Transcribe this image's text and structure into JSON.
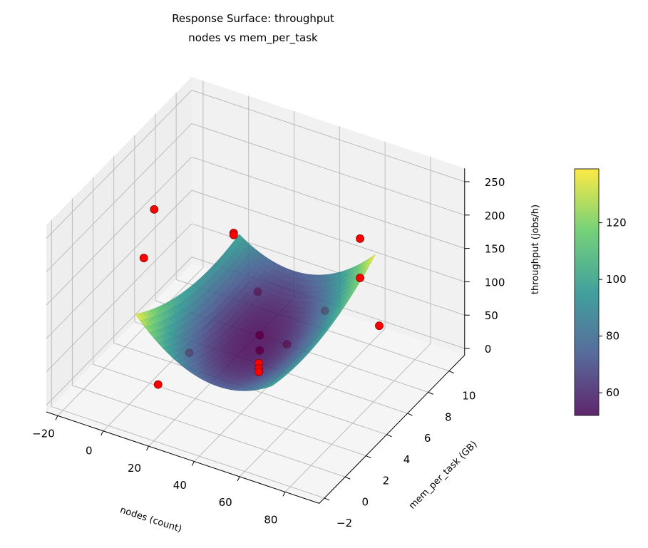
{
  "chart_data": {
    "type": "surface3d+scatter3d",
    "title": "Response Surface: throughput",
    "subtitle": "nodes vs mem_per_task",
    "xlabel": "nodes (count)",
    "ylabel": "mem_per_task (GB)",
    "zlabel": "throughput (jobs/h)",
    "xlim": [
      -25,
      95
    ],
    "ylim": [
      -2.5,
      11.5
    ],
    "zlim": [
      -10,
      270
    ],
    "xticks": [
      -20,
      0,
      20,
      40,
      60,
      80
    ],
    "yticks": [
      -2,
      0,
      2,
      4,
      6,
      8,
      10
    ],
    "zticks": [
      0,
      50,
      100,
      150,
      200,
      250
    ],
    "grid": true,
    "colormap": "viridis",
    "surface": {
      "x_range": [
        5,
        65
      ],
      "y_range": [
        -0.5,
        9.5
      ],
      "model": {
        "intercept": 52,
        "x_center": 35,
        "y_center": 4.5,
        "a_xx": 0.05,
        "b_yy": 0.9,
        "c_xy": 0.13
      },
      "alpha": 0.85
    },
    "colorbar": {
      "min": 52,
      "max": 139,
      "ticks": [
        60,
        80,
        100,
        120
      ]
    },
    "points": {
      "color": "#ff0000",
      "edge_color": "#8b0000",
      "data": [
        [
          30,
          6,
          33
        ],
        [
          30,
          6,
          10
        ],
        [
          57,
          0,
          117
        ],
        [
          57,
          0,
          109
        ],
        [
          57,
          0,
          104
        ],
        [
          20,
          8,
          55
        ],
        [
          42,
          6,
          33
        ],
        [
          45,
          9,
          39
        ],
        [
          78,
          7,
          86
        ],
        [
          65,
          8,
          127
        ],
        [
          65,
          8,
          186
        ],
        [
          35,
          2.4,
          249
        ],
        [
          35,
          2.4,
          246
        ],
        [
          -10,
          4.6,
          198
        ],
        [
          -10,
          3.6,
          141
        ],
        [
          15,
          2.5,
          45
        ],
        [
          15,
          -0.5,
          45
        ]
      ]
    }
  }
}
